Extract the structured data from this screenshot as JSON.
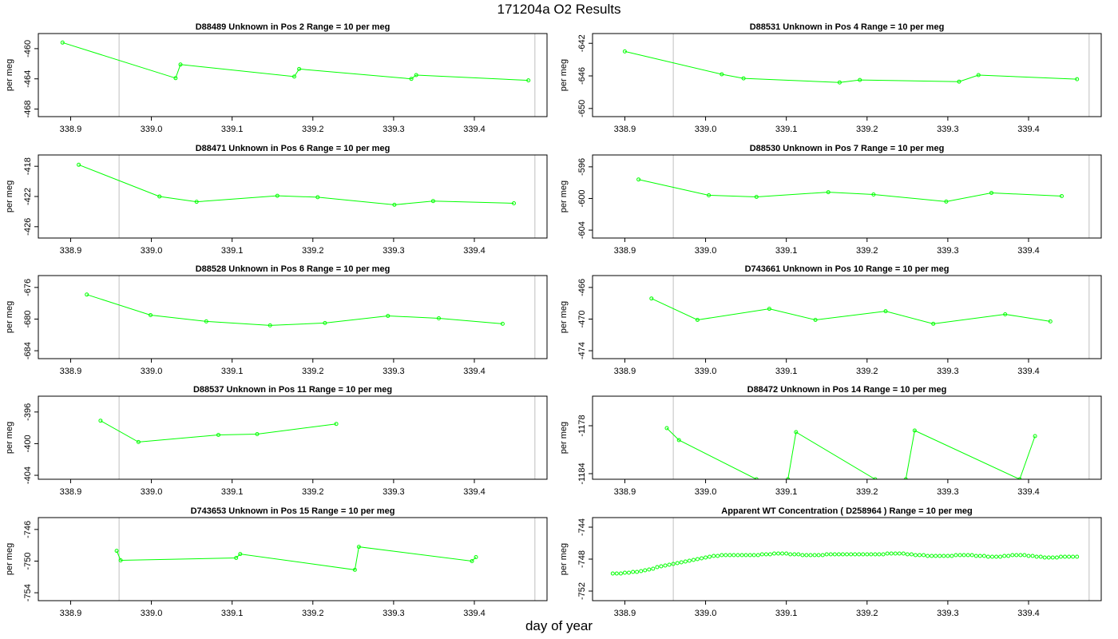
{
  "page": {
    "title": "171204a  O2 Results",
    "xlabel": "day of year"
  },
  "colors": {
    "series": "#00ff00",
    "vline": "#bebebe",
    "frame": "#000000"
  },
  "chart_data": [
    {
      "type": "line",
      "title": "D88489    Unknown in Pos 2          Range = 10 per meg",
      "ylabel": "per meg",
      "xlim": [
        338.86,
        339.49
      ],
      "ylim": [
        -469,
        -458
      ],
      "yticks": [
        -460,
        -464,
        -468
      ],
      "xticks": [
        338.9,
        339.0,
        339.1,
        339.2,
        339.3,
        339.4
      ],
      "vlines": [
        338.96,
        339.475
      ],
      "x": [
        338.89,
        339.03,
        339.036,
        339.177,
        339.183,
        339.322,
        339.328,
        339.467
      ],
      "y": [
        -459.2,
        -463.9,
        -462.1,
        -463.7,
        -462.7,
        -464.0,
        -463.5,
        -464.2
      ]
    },
    {
      "type": "line",
      "title": "D88531    Unknown in Pos 4          Range = 10 per meg",
      "ylabel": "per meg",
      "xlim": [
        338.86,
        339.49
      ],
      "ylim": [
        -651,
        -640.8
      ],
      "yticks": [
        -642,
        -646,
        -650
      ],
      "xticks": [
        338.9,
        339.0,
        339.1,
        339.2,
        339.3,
        339.4
      ],
      "vlines": [
        338.96,
        339.475
      ],
      "x": [
        338.9,
        339.02,
        339.047,
        339.166,
        339.191,
        339.314,
        339.338,
        339.46
      ],
      "y": [
        -643.0,
        -645.8,
        -646.3,
        -646.8,
        -646.5,
        -646.7,
        -645.9,
        -646.4
      ]
    },
    {
      "type": "line",
      "title": "D88471    Unknown in Pos 6          Range = 10 per meg",
      "ylabel": "per meg",
      "xlim": [
        338.86,
        339.49
      ],
      "ylim": [
        -427.5,
        -416.5
      ],
      "yticks": [
        -418,
        -422,
        -426
      ],
      "xticks": [
        338.9,
        339.0,
        339.1,
        339.2,
        339.3,
        339.4
      ],
      "vlines": [
        338.96,
        339.475
      ],
      "x": [
        338.91,
        339.01,
        339.056,
        339.156,
        339.206,
        339.301,
        339.349,
        339.449
      ],
      "y": [
        -417.8,
        -422.0,
        -422.7,
        -421.9,
        -422.1,
        -423.1,
        -422.6,
        -422.9
      ]
    },
    {
      "type": "line",
      "title": "D88530    Unknown in Pos 7          Range = 10 per meg",
      "ylabel": "per meg",
      "xlim": [
        338.86,
        339.49
      ],
      "ylim": [
        -605,
        -594.5
      ],
      "yticks": [
        -596,
        -600,
        -604
      ],
      "xticks": [
        338.9,
        339.0,
        339.1,
        339.2,
        339.3,
        339.4
      ],
      "vlines": [
        338.96,
        339.475
      ],
      "x": [
        338.917,
        339.004,
        339.063,
        339.152,
        339.208,
        339.298,
        339.354,
        339.441
      ],
      "y": [
        -597.6,
        -599.6,
        -599.8,
        -599.2,
        -599.5,
        -600.4,
        -599.3,
        -599.7
      ]
    },
    {
      "type": "line",
      "title": "D88528    Unknown in Pos 8          Range = 10 per meg",
      "ylabel": "per meg",
      "xlim": [
        338.86,
        339.49
      ],
      "ylim": [
        -685,
        -674.5
      ],
      "yticks": [
        -676,
        -680,
        -684
      ],
      "xticks": [
        338.9,
        339.0,
        339.1,
        339.2,
        339.3,
        339.4
      ],
      "vlines": [
        338.96,
        339.475
      ],
      "x": [
        338.92,
        338.999,
        339.068,
        339.147,
        339.215,
        339.293,
        339.356,
        339.435
      ],
      "y": [
        -676.9,
        -679.5,
        -680.3,
        -680.8,
        -680.5,
        -679.6,
        -679.9,
        -680.6
      ]
    },
    {
      "type": "line",
      "title": "D743661    Unknown in Pos 10          Range = 10 per meg",
      "ylabel": "per meg",
      "xlim": [
        338.86,
        339.49
      ],
      "ylim": [
        -475,
        -464.5
      ],
      "yticks": [
        -466,
        -470,
        -474
      ],
      "xticks": [
        338.9,
        339.0,
        339.1,
        339.2,
        339.3,
        339.4
      ],
      "vlines": [
        338.96,
        339.475
      ],
      "x": [
        338.933,
        338.99,
        339.079,
        339.136,
        339.223,
        339.282,
        339.371,
        339.427
      ],
      "y": [
        -467.4,
        -470.1,
        -468.7,
        -470.1,
        -469.0,
        -470.6,
        -469.4,
        -470.3
      ]
    },
    {
      "type": "line",
      "title": "D88537    Unknown in Pos 11          Range = 10 per meg",
      "ylabel": "per meg",
      "xlim": [
        338.86,
        339.49
      ],
      "ylim": [
        -404.5,
        -394
      ],
      "yticks": [
        -396,
        -400,
        -404
      ],
      "xticks": [
        338.9,
        339.0,
        339.1,
        339.2,
        339.3,
        339.4
      ],
      "vlines": [
        338.96,
        339.475
      ],
      "x": [
        338.937,
        338.984,
        339.083,
        339.131,
        339.229
      ],
      "y": [
        -397.1,
        -399.8,
        -398.9,
        -398.8,
        -397.5
      ]
    },
    {
      "type": "line",
      "title": "D88472    Unknown in Pos 14          Range = 10 per meg",
      "ylabel": "per meg",
      "xlim": [
        338.86,
        339.49
      ],
      "ylim": [
        -1184.7,
        -1174.3
      ],
      "yticks": [
        -1178,
        -1184
      ],
      "xticks": [
        338.9,
        339.0,
        339.1,
        339.2,
        339.3,
        339.4
      ],
      "vlines": [
        338.96,
        339.475
      ],
      "x": [
        338.952,
        338.967,
        339.063,
        339.102,
        339.112,
        339.21,
        339.248,
        339.259,
        339.389,
        339.408
      ],
      "y": [
        -1178.3,
        -1179.8,
        -1184.7,
        -1184.7,
        -1178.8,
        -1184.7,
        -1184.7,
        -1178.6,
        -1184.7,
        -1179.3
      ]
    },
    {
      "type": "line",
      "title": "D743653    Unknown in Pos 15          Range = 10 per meg",
      "ylabel": "per meg",
      "xlim": [
        338.86,
        339.49
      ],
      "ylim": [
        -755,
        -744.5
      ],
      "yticks": [
        -746,
        -750,
        -754
      ],
      "xticks": [
        338.9,
        339.0,
        339.1,
        339.2,
        339.3,
        339.4
      ],
      "vlines": [
        338.96,
        339.475
      ],
      "x": [
        338.957,
        338.962,
        339.105,
        339.11,
        339.252,
        339.257,
        339.397,
        339.402
      ],
      "y": [
        -748.7,
        -749.9,
        -749.6,
        -749.1,
        -751.1,
        -748.2,
        -750.0,
        -749.5
      ]
    },
    {
      "type": "scatter",
      "title": "Apparent WT Concentration ( D258964 )          Range = 10 per meg",
      "ylabel": "per meg",
      "xlim": [
        338.86,
        339.49
      ],
      "ylim": [
        -753.2,
        -742.8
      ],
      "yticks": [
        -744,
        -748,
        -752
      ],
      "xticks": [
        338.9,
        339.0,
        339.1,
        339.2,
        339.3,
        339.4
      ],
      "vlines": [
        338.96,
        339.475
      ],
      "x": [
        338.885,
        338.89,
        338.895,
        338.9,
        338.905,
        338.91,
        338.915,
        338.92,
        338.925,
        338.93,
        338.935,
        338.94,
        338.945,
        338.95,
        338.955,
        338.96,
        338.965,
        338.97,
        338.975,
        338.98,
        338.985,
        338.99,
        338.995,
        339.0,
        339.005,
        339.01,
        339.015,
        339.02,
        339.025,
        339.03,
        339.035,
        339.04,
        339.045,
        339.05,
        339.055,
        339.06,
        339.065,
        339.07,
        339.075,
        339.08,
        339.085,
        339.09,
        339.095,
        339.1,
        339.105,
        339.11,
        339.115,
        339.12,
        339.125,
        339.13,
        339.135,
        339.14,
        339.145,
        339.15,
        339.155,
        339.16,
        339.165,
        339.17,
        339.175,
        339.18,
        339.185,
        339.19,
        339.195,
        339.2,
        339.205,
        339.21,
        339.215,
        339.22,
        339.225,
        339.23,
        339.235,
        339.24,
        339.245,
        339.25,
        339.255,
        339.26,
        339.265,
        339.27,
        339.275,
        339.28,
        339.285,
        339.29,
        339.295,
        339.3,
        339.305,
        339.31,
        339.315,
        339.32,
        339.325,
        339.33,
        339.335,
        339.34,
        339.345,
        339.35,
        339.355,
        339.36,
        339.365,
        339.37,
        339.375,
        339.38,
        339.385,
        339.39,
        339.395,
        339.4,
        339.405,
        339.41,
        339.415,
        339.42,
        339.425,
        339.43,
        339.435,
        339.44,
        339.445,
        339.45,
        339.455,
        339.46
      ],
      "y": [
        -749.8,
        -749.8,
        -749.8,
        -749.7,
        -749.7,
        -749.6,
        -749.6,
        -749.5,
        -749.4,
        -749.3,
        -749.2,
        -749.0,
        -748.9,
        -748.8,
        -748.7,
        -748.6,
        -748.5,
        -748.4,
        -748.3,
        -748.2,
        -748.1,
        -748.0,
        -747.9,
        -747.8,
        -747.7,
        -747.6,
        -747.6,
        -747.5,
        -747.5,
        -747.5,
        -747.5,
        -747.5,
        -747.5,
        -747.5,
        -747.5,
        -747.5,
        -747.5,
        -747.4,
        -747.4,
        -747.4,
        -747.3,
        -747.3,
        -747.3,
        -747.3,
        -747.4,
        -747.4,
        -747.4,
        -747.5,
        -747.5,
        -747.5,
        -747.5,
        -747.5,
        -747.5,
        -747.4,
        -747.4,
        -747.4,
        -747.4,
        -747.4,
        -747.4,
        -747.4,
        -747.4,
        -747.4,
        -747.4,
        -747.4,
        -747.4,
        -747.4,
        -747.4,
        -747.4,
        -747.3,
        -747.3,
        -747.3,
        -747.3,
        -747.3,
        -747.4,
        -747.4,
        -747.5,
        -747.5,
        -747.5,
        -747.6,
        -747.6,
        -747.6,
        -747.6,
        -747.6,
        -747.6,
        -747.6,
        -747.5,
        -747.5,
        -747.5,
        -747.5,
        -747.5,
        -747.6,
        -747.6,
        -747.6,
        -747.7,
        -747.7,
        -747.7,
        -747.7,
        -747.6,
        -747.6,
        -747.5,
        -747.5,
        -747.5,
        -747.5,
        -747.6,
        -747.6,
        -747.7,
        -747.7,
        -747.8,
        -747.8,
        -747.8,
        -747.8,
        -747.7,
        -747.7,
        -747.7,
        -747.7,
        -747.7
      ]
    }
  ]
}
